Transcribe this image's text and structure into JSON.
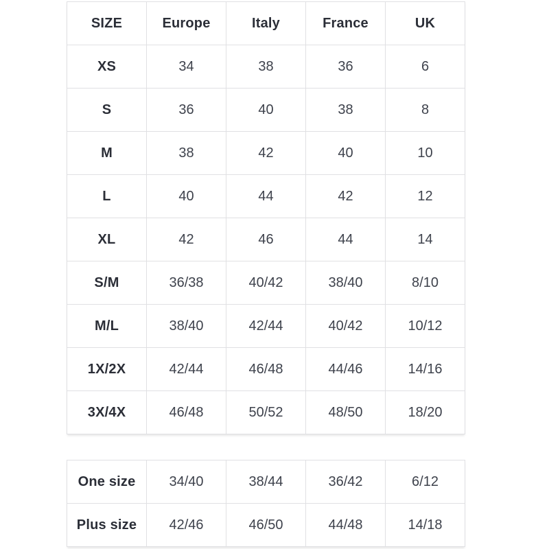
{
  "page": {
    "background": "#ffffff"
  },
  "colors": {
    "table_border": "#e0e0e3",
    "label_text": "#2b2e37",
    "value_text": "#3e424c"
  },
  "chart_data": [
    {
      "type": "table",
      "columns": [
        "SIZE",
        "Europe",
        "Italy",
        "France",
        "UK"
      ],
      "rows": [
        [
          "XS",
          "34",
          "38",
          "36",
          "6"
        ],
        [
          "S",
          "36",
          "40",
          "38",
          "8"
        ],
        [
          "M",
          "38",
          "42",
          "40",
          "10"
        ],
        [
          "L",
          "40",
          "44",
          "42",
          "12"
        ],
        [
          "XL",
          "42",
          "46",
          "44",
          "14"
        ],
        [
          "S/M",
          "36/38",
          "40/42",
          "38/40",
          "8/10"
        ],
        [
          "M/L",
          "38/40",
          "42/44",
          "40/42",
          "10/12"
        ],
        [
          "1X/2X",
          "42/44",
          "46/48",
          "44/46",
          "14/16"
        ],
        [
          "3X/4X",
          "46/48",
          "50/52",
          "48/50",
          "18/20"
        ]
      ]
    },
    {
      "type": "table",
      "rows": [
        [
          "One size",
          "34/40",
          "38/44",
          "36/42",
          "6/12"
        ],
        [
          "Plus size",
          "42/46",
          "46/50",
          "44/48",
          "14/18"
        ]
      ]
    }
  ]
}
